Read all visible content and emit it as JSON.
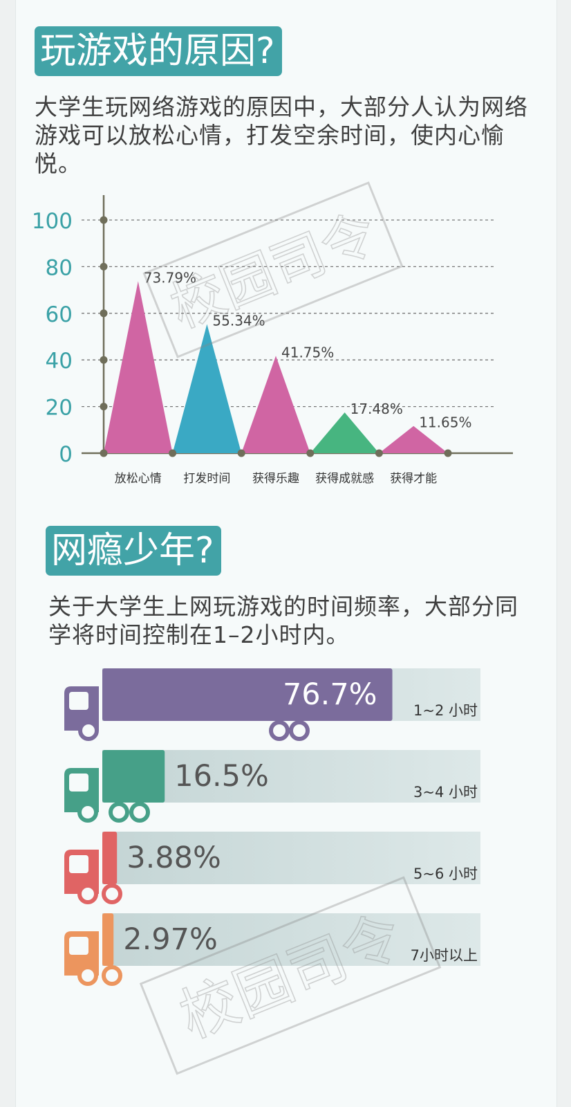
{
  "section1": {
    "heading": "玩游戏的原因?",
    "paragraph": "大学生玩网络游戏的原因中，大部分人认为网络游戏可以放松心情，打发空余时间，使内心愉悦。"
  },
  "section2": {
    "heading": "网瘾少年?",
    "paragraph": "关于大学生上网玩游戏的时间频率，大部分同学将时间控制在1–2小时内。"
  },
  "watermark": "校园司令",
  "chart_data": [
    {
      "type": "bar",
      "style": "triangle-peaks",
      "categories": [
        "放松心情",
        "打发时间",
        "获得乐趣",
        "获得成就感",
        "获得才能"
      ],
      "values": [
        73.79,
        55.34,
        41.75,
        17.48,
        11.65
      ],
      "value_labels": [
        "73.79%",
        "55.34%",
        "41.75%",
        "17.48%",
        "11.65%"
      ],
      "colors": [
        "#d065a3",
        "#3aa9c4",
        "#d065a3",
        "#47b580",
        "#d065a3"
      ],
      "yticks": [
        "0",
        "20",
        "40",
        "60",
        "80",
        "100"
      ],
      "ylim": [
        0,
        100
      ],
      "grid": true
    },
    {
      "type": "bar",
      "orientation": "horizontal",
      "style": "trucks",
      "categories": [
        "1~2 小时",
        "3~4 小时",
        "5~6 小时",
        "7小时以上"
      ],
      "values": [
        76.7,
        16.5,
        3.88,
        2.97
      ],
      "value_labels": [
        "76.7%",
        "16.5%",
        "3.88%",
        "2.97%"
      ],
      "colors": [
        "#7b6c9c",
        "#46a088",
        "#e06464",
        "#ec955e"
      ]
    }
  ]
}
